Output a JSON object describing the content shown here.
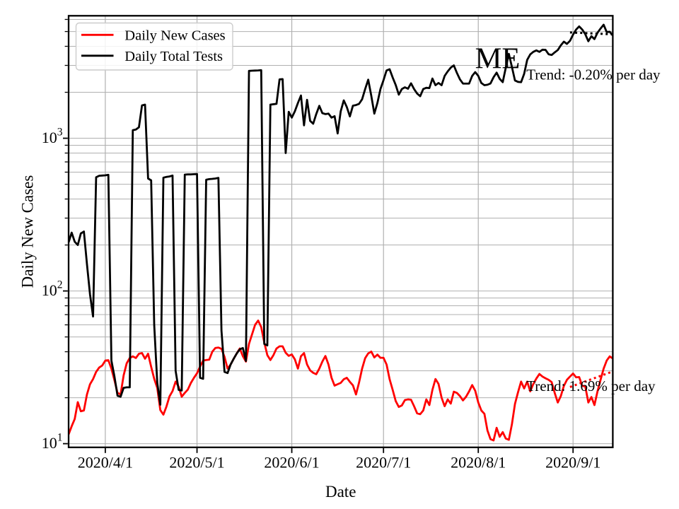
{
  "chart_data": {
    "type": "line",
    "title": "ME",
    "xlabel": "Date",
    "ylabel": "Daily New Cases",
    "x_axis": {
      "start_date": "2020/3/20",
      "end_date": "2020/9/14",
      "frequency": "daily",
      "tick_labels": [
        "2020/4/1",
        "2020/5/1",
        "2020/6/1",
        "2020/7/1",
        "2020/8/1",
        "2020/9/1"
      ],
      "tick_day_index": [
        12,
        42,
        73,
        103,
        134,
        165
      ]
    },
    "y_axis": {
      "scale": "log",
      "ylim": [
        9.46,
        6340
      ],
      "major_ticks": [
        {
          "label": "10^1",
          "base": "10",
          "exponent": "1",
          "value": 10
        },
        {
          "label": "10^2",
          "base": "10",
          "exponent": "2",
          "value": 100
        },
        {
          "label": "10^3",
          "base": "10",
          "exponent": "3",
          "value": 1000
        }
      ],
      "minor_gridlines_per_decade": [
        2,
        3,
        4,
        5,
        6,
        7,
        8,
        9
      ],
      "grid": true
    },
    "dates": [
      "2020/3/20",
      "2020/3/21",
      "2020/3/22",
      "2020/3/23",
      "2020/3/24",
      "2020/3/25",
      "2020/3/26",
      "2020/3/27",
      "2020/3/28",
      "2020/3/29",
      "2020/3/30",
      "2020/3/31",
      "2020/4/1",
      "2020/4/2",
      "2020/4/3",
      "2020/4/4",
      "2020/4/5",
      "2020/4/6",
      "2020/4/7",
      "2020/4/8",
      "2020/4/9",
      "2020/4/10",
      "2020/4/11",
      "2020/4/12",
      "2020/4/13",
      "2020/4/14",
      "2020/4/15",
      "2020/4/16",
      "2020/4/17",
      "2020/4/18",
      "2020/4/19",
      "2020/4/20",
      "2020/4/21",
      "2020/4/22",
      "2020/4/23",
      "2020/4/24",
      "2020/4/25",
      "2020/4/26",
      "2020/4/27",
      "2020/4/28",
      "2020/4/29",
      "2020/4/30",
      "2020/5/1",
      "2020/5/2",
      "2020/5/3",
      "2020/5/4",
      "2020/5/5",
      "2020/5/6",
      "2020/5/7",
      "2020/5/8",
      "2020/5/9",
      "2020/5/10",
      "2020/5/11",
      "2020/5/12",
      "2020/5/13",
      "2020/5/14",
      "2020/5/15",
      "2020/5/16",
      "2020/5/17",
      "2020/5/18",
      "2020/5/19",
      "2020/5/20",
      "2020/5/21",
      "2020/5/22",
      "2020/5/23",
      "2020/5/24",
      "2020/5/25",
      "2020/5/26",
      "2020/5/27",
      "2020/5/28",
      "2020/5/29",
      "2020/5/30",
      "2020/5/31",
      "2020/6/1",
      "2020/6/2",
      "2020/6/3",
      "2020/6/4",
      "2020/6/5",
      "2020/6/6",
      "2020/6/7",
      "2020/6/8",
      "2020/6/9",
      "2020/6/10",
      "2020/6/11",
      "2020/6/12",
      "2020/6/13",
      "2020/6/14",
      "2020/6/15",
      "2020/6/16",
      "2020/6/17",
      "2020/6/18",
      "2020/6/19",
      "2020/6/20",
      "2020/6/21",
      "2020/6/22",
      "2020/6/23",
      "2020/6/24",
      "2020/6/25",
      "2020/6/26",
      "2020/6/27",
      "2020/6/28",
      "2020/6/29",
      "2020/6/30",
      "2020/7/1",
      "2020/7/2",
      "2020/7/3",
      "2020/7/4",
      "2020/7/5",
      "2020/7/6",
      "2020/7/7",
      "2020/7/8",
      "2020/7/9",
      "2020/7/10",
      "2020/7/11",
      "2020/7/12",
      "2020/7/13",
      "2020/7/14",
      "2020/7/15",
      "2020/7/16",
      "2020/7/17",
      "2020/7/18",
      "2020/7/19",
      "2020/7/20",
      "2020/7/21",
      "2020/7/22",
      "2020/7/23",
      "2020/7/24",
      "2020/7/25",
      "2020/7/26",
      "2020/7/27",
      "2020/7/28",
      "2020/7/29",
      "2020/7/30",
      "2020/7/31",
      "2020/8/1",
      "2020/8/2",
      "2020/8/3",
      "2020/8/4",
      "2020/8/5",
      "2020/8/6",
      "2020/8/7",
      "2020/8/8",
      "2020/8/9",
      "2020/8/10",
      "2020/8/11",
      "2020/8/12",
      "2020/8/13",
      "2020/8/14",
      "2020/8/15",
      "2020/8/16",
      "2020/8/17",
      "2020/8/18",
      "2020/8/19",
      "2020/8/20",
      "2020/8/21",
      "2020/8/22",
      "2020/8/23",
      "2020/8/24",
      "2020/8/25",
      "2020/8/26",
      "2020/8/27",
      "2020/8/28",
      "2020/8/29",
      "2020/8/30",
      "2020/8/31",
      "2020/9/1",
      "2020/9/2",
      "2020/9/3",
      "2020/9/4",
      "2020/9/5",
      "2020/9/6",
      "2020/9/7",
      "2020/9/8",
      "2020/9/9",
      "2020/9/10",
      "2020/9/11",
      "2020/9/12",
      "2020/9/13",
      "2020/9/14"
    ],
    "series": [
      {
        "name": "Daily New Cases",
        "color": "#ff0000",
        "values": [
          11.5,
          13,
          14.5,
          18.7,
          16.3,
          16.5,
          21,
          24.5,
          26.5,
          29.5,
          31.5,
          32.5,
          35,
          35.2,
          31,
          26,
          21.5,
          21,
          28,
          33.6,
          36.4,
          37.3,
          36.4,
          38.8,
          39.2,
          36,
          38.8,
          31.9,
          26.6,
          23.2,
          16.6,
          15.5,
          17.5,
          20.4,
          22.1,
          25.5,
          23.6,
          20.3,
          21.5,
          22.6,
          25,
          27,
          28.9,
          32,
          35,
          35.3,
          35.5,
          40,
          42.3,
          42.6,
          41.8,
          37,
          31,
          33,
          36,
          39,
          42,
          37.4,
          34.5,
          45,
          52,
          60,
          64,
          58,
          46,
          38,
          35.3,
          38,
          42,
          43.4,
          43.4,
          39.4,
          37.6,
          38.4,
          35.7,
          31,
          37.4,
          39.2,
          33,
          30.2,
          29.1,
          28.5,
          31,
          34.5,
          37.5,
          33,
          27,
          24,
          24.5,
          25,
          26.4,
          27,
          25.4,
          24.1,
          21,
          25.1,
          31,
          36.3,
          39,
          40.1,
          36.7,
          38.3,
          36.5,
          36.5,
          33,
          26.4,
          22.5,
          19,
          17.4,
          17.8,
          19.3,
          19.5,
          19.4,
          17.6,
          15.8,
          15.6,
          16.5,
          19.5,
          17.9,
          22.5,
          26.5,
          24.6,
          20,
          17.6,
          19.5,
          18.3,
          21.9,
          21.5,
          20.5,
          19.2,
          20.3,
          22,
          24.2,
          22.2,
          18.6,
          16.5,
          15.7,
          12.2,
          10.7,
          10.5,
          12.7,
          11.1,
          11.9,
          10.8,
          10.6,
          13.4,
          18.2,
          21.7,
          25.5,
          23,
          25.5,
          22,
          24.6,
          26.7,
          28.6,
          27.5,
          26.8,
          26.2,
          25.3,
          21.5,
          18.6,
          20.5,
          23.9,
          26.2,
          27.5,
          28.8,
          27.2,
          27.3,
          23.9,
          23.7,
          18.6,
          20.2,
          17.9,
          22,
          26.2,
          31,
          35,
          37.3,
          36.1
        ]
      },
      {
        "name": "Daily Total Tests",
        "color": "#000000",
        "values": [
          208,
          241,
          210,
          200,
          238,
          245,
          150,
          95,
          68,
          555,
          568,
          570,
          572,
          576,
          35,
          27.5,
          20.6,
          20.3,
          23.2,
          23.4,
          23.4,
          1130,
          1140,
          1180,
          1640,
          1660,
          545,
          530,
          60,
          25,
          18,
          552,
          558,
          562,
          570,
          30,
          22.5,
          22.3,
          578,
          580,
          580,
          582,
          583,
          27,
          26.6,
          535,
          540,
          542,
          545,
          550,
          55,
          29.5,
          29,
          33,
          36,
          39,
          41.5,
          42.3,
          34.8,
          2760,
          2770,
          2775,
          2780,
          2790,
          45,
          44,
          1660,
          1670,
          1680,
          2430,
          2440,
          800,
          1490,
          1365,
          1500,
          1700,
          1905,
          1215,
          1785,
          1300,
          1245,
          1440,
          1630,
          1460,
          1440,
          1450,
          1365,
          1395,
          1075,
          1500,
          1770,
          1600,
          1390,
          1635,
          1650,
          1680,
          1800,
          2100,
          2420,
          1900,
          1450,
          1700,
          2100,
          2400,
          2780,
          2830,
          2500,
          2230,
          1930,
          2100,
          2155,
          2110,
          2290,
          2100,
          1963,
          1885,
          2100,
          2140,
          2130,
          2460,
          2225,
          2300,
          2225,
          2560,
          2740,
          2900,
          3000,
          2680,
          2430,
          2280,
          2280,
          2280,
          2560,
          2710,
          2560,
          2300,
          2225,
          2240,
          2285,
          2510,
          2690,
          2450,
          2330,
          2900,
          3570,
          2930,
          2390,
          2340,
          2330,
          2640,
          3260,
          3540,
          3680,
          3760,
          3680,
          3800,
          3790,
          3550,
          3510,
          3650,
          3780,
          4060,
          4290,
          4150,
          4345,
          4770,
          5150,
          5400,
          5150,
          4800,
          4320,
          4660,
          4460,
          4910,
          5230,
          5540,
          4960,
          4980,
          4710
        ]
      }
    ],
    "trend_lines": [
      {
        "series": "Daily Total Tests",
        "label": "Trend: -0.20% per day",
        "pct_per_day": -0.2,
        "start_day_index": 164,
        "end_day_index": 178,
        "start_value": 4930,
        "color": "#000000"
      },
      {
        "series": "Daily New Cases",
        "label": "Trend: 1.69% per day",
        "pct_per_day": 1.69,
        "start_day_index": 164,
        "end_day_index": 178,
        "start_value": 23.5,
        "color": "#ff0000"
      }
    ],
    "legend": {
      "position": "upper left",
      "items": [
        {
          "label": "Daily New Cases",
          "color": "#ff0000"
        },
        {
          "label": "Daily Total Tests",
          "color": "#000000"
        }
      ]
    },
    "colors": {
      "grid": "#b0b0b0",
      "axes": "#000000",
      "background": "#ffffff",
      "legend_border": "#cccccc"
    }
  }
}
